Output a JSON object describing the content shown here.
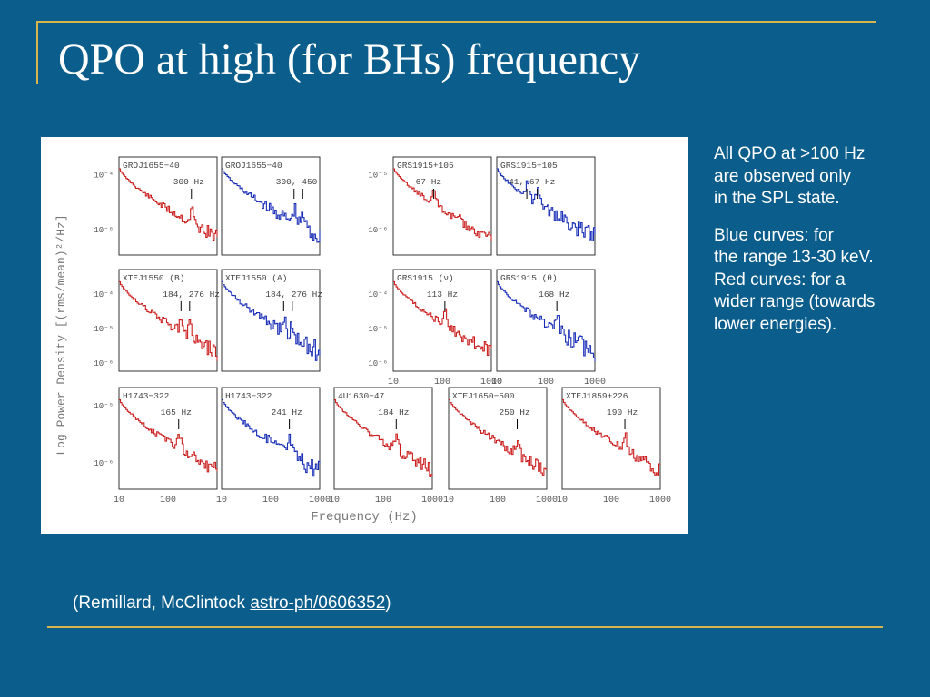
{
  "slide": {
    "title": "QPO at high (for BHs) frequency",
    "notes": {
      "para1": [
        "All QPO at >100 Hz",
        "are observed only",
        "in the SPL state."
      ],
      "para2": [
        "Blue curves: for",
        "the range 13-30 keV.",
        "Red curves: for a",
        "wider range (towards",
        "lower energies)."
      ]
    },
    "citation": {
      "prefix": "(Remillard, McClintock ",
      "link": "astro-ph/0606352",
      "suffix": ")"
    }
  },
  "colors": {
    "background": "#0b5d8c",
    "accent_rule": "#d8b54a",
    "red_curve": "#cc2020",
    "blue_curve": "#1a2fb8"
  },
  "chart_data": {
    "type": "line",
    "ylabel": "Log Power Density [(rms/mean)²/Hz]",
    "xlabel": "Frequency (Hz)",
    "x_scale": "log",
    "y_scale": "log",
    "x_ticks": [
      "10",
      "100",
      "1000"
    ],
    "panels": [
      {
        "name": "GROJ1655−40",
        "color": "red",
        "qpo_label": "300 Hz",
        "qpo_hz": [
          300
        ],
        "yticks": [
          "10⁻⁴",
          "10⁻⁶"
        ],
        "xlim": [
          10,
          1000
        ]
      },
      {
        "name": "GROJ1655−40",
        "color": "blue",
        "qpo_label": "300, 450",
        "qpo_hz": [
          300,
          450
        ],
        "xlim": [
          10,
          1000
        ]
      },
      {
        "name": "GRS1915+105",
        "color": "red",
        "qpo_label": "67 Hz",
        "qpo_hz": [
          67
        ],
        "yticks": [
          "10⁻⁵",
          "10⁻⁶"
        ],
        "xlim": [
          10,
          1000
        ]
      },
      {
        "name": "GRS1915+105",
        "color": "blue",
        "qpo_label": "41, 67 Hz",
        "qpo_hz": [
          41,
          67
        ],
        "xlim": [
          10,
          1000
        ]
      },
      {
        "name": "XTEJ1550 (B)",
        "color": "red",
        "qpo_label": "184, 276 Hz",
        "qpo_hz": [
          184,
          276
        ],
        "yticks": [
          "10⁻⁴",
          "10⁻⁵",
          "10⁻⁶"
        ],
        "xlim": [
          10,
          1000
        ]
      },
      {
        "name": "XTEJ1550 (A)",
        "color": "blue",
        "qpo_label": "184, 276 Hz",
        "qpo_hz": [
          184,
          276
        ],
        "xlim": [
          10,
          1000
        ]
      },
      {
        "name": "GRS1915 (ν)",
        "color": "red",
        "qpo_label": "113 Hz",
        "qpo_hz": [
          113
        ],
        "yticks": [
          "10⁻⁴",
          "10⁻⁵",
          "10⁻⁶"
        ],
        "xlim": [
          10,
          1000
        ],
        "x_ticks": [
          "10",
          "100",
          "1000"
        ]
      },
      {
        "name": "GRS1915 (θ)",
        "color": "blue",
        "qpo_label": "168 Hz",
        "qpo_hz": [
          168
        ],
        "xlim": [
          10,
          1000
        ],
        "x_ticks": [
          "10",
          "100",
          "1000"
        ]
      },
      {
        "name": "H1743−322",
        "color": "red",
        "qpo_label": "165 Hz",
        "qpo_hz": [
          165
        ],
        "yticks": [
          "10⁻⁵",
          "10⁻⁶"
        ],
        "xlim": [
          10,
          1000
        ],
        "x_ticks": [
          "10",
          "100"
        ]
      },
      {
        "name": "H1743−322",
        "color": "blue",
        "qpo_label": "241 Hz",
        "qpo_hz": [
          241
        ],
        "xlim": [
          10,
          1000
        ],
        "x_ticks": [
          "10",
          "100",
          "1000"
        ]
      },
      {
        "name": "4U1630−47",
        "color": "red",
        "qpo_label": "184 Hz",
        "qpo_hz": [
          184
        ],
        "xlim": [
          10,
          1000
        ],
        "x_ticks": [
          "10",
          "100",
          "1000"
        ]
      },
      {
        "name": "XTEJ1650−500",
        "color": "red",
        "qpo_label": "250 Hz",
        "qpo_hz": [
          250
        ],
        "xlim": [
          10,
          1000
        ],
        "x_ticks": [
          "10",
          "100",
          "1000"
        ]
      },
      {
        "name": "XTEJ1859+226",
        "color": "red",
        "qpo_label": "190 Hz",
        "qpo_hz": [
          190
        ],
        "xlim": [
          10,
          1000
        ],
        "x_ticks": [
          "10",
          "100",
          "1000"
        ]
      }
    ]
  }
}
